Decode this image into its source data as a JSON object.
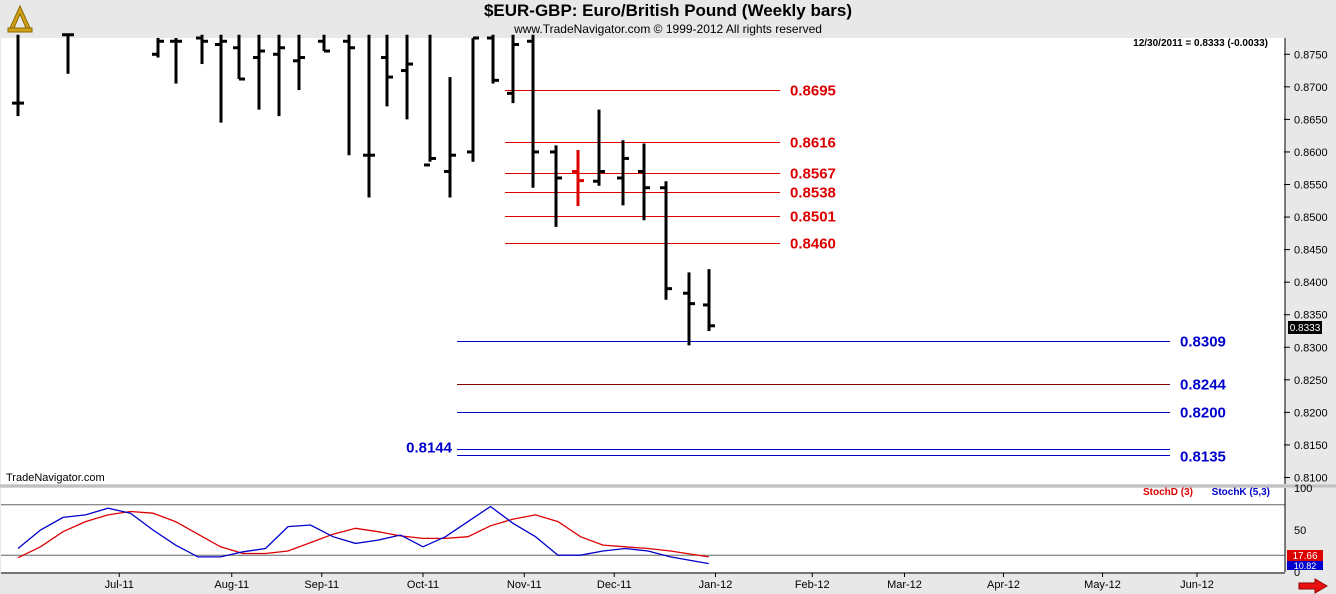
{
  "header": {
    "title": "$EUR-GBP:  Euro/British Pound  (Weekly bars)",
    "copyright": "www.TradeNavigator.com © 1999-2012 All rights reserved",
    "watermark": "TradeNavigator.com",
    "last_quote": "12/30/2011 = 0.8333 (-0.0033)",
    "price_tag": "0.8333",
    "stoch_tag": "17.66",
    "stoch_tag2": "10.82"
  },
  "colors": {
    "price_bar": "#000000",
    "highlight_bar": "#dd0000",
    "resistance": "#dd0000",
    "support": "#0000cc",
    "stoch_d": "#dd0000",
    "stoch_k": "#0000cc",
    "background": "#ffffff",
    "gutter": "#e8e8e8"
  },
  "icons": {
    "logo": "golden-tripod-logo-icon",
    "scroll": "red-right-arrow-icon"
  },
  "chart_data": [
    {
      "type": "ohlc",
      "title": "$EUR-GBP:  Euro/British Pound  (Weekly bars)",
      "yaxis": {
        "position": "right",
        "ylim": [
          0.809,
          0.8775
        ],
        "ticks": [
          "0.8750",
          "0.8700",
          "0.8650",
          "0.8600",
          "0.8550",
          "0.8500",
          "0.8450",
          "0.8400",
          "0.8350",
          "0.8300",
          "0.8250",
          "0.8200",
          "0.8150",
          "0.8100"
        ]
      },
      "xaxis": {
        "ticks": [
          "Jul-11",
          "Aug-11",
          "Sep-11",
          "Oct-11",
          "Nov-11",
          "Dec-11",
          "Jan-12",
          "Feb-12",
          "Mar-12",
          "Apr-12",
          "May-12",
          "Jun-12"
        ],
        "tick_weeks": [
          4.5,
          9.5,
          13.5,
          18,
          22.5,
          26.5,
          31,
          35.3,
          39.4,
          43.8,
          48.2,
          52.4
        ]
      },
      "grid": false,
      "bars": [
        {
          "week": 0,
          "o": 0.8675,
          "h": 0.878,
          "l": 0.8655,
          "c": 0.8675
        },
        {
          "week": 2.2,
          "o": 0.878,
          "h": 0.878,
          "l": 0.872,
          "c": 0.878
        },
        {
          "week": 6.2,
          "o": 0.875,
          "h": 0.8775,
          "l": 0.8745,
          "c": 0.877
        },
        {
          "week": 7,
          "o": 0.877,
          "h": 0.8775,
          "l": 0.8705,
          "c": 0.877
        },
        {
          "week": 8.2,
          "o": 0.8775,
          "h": 0.878,
          "l": 0.8735,
          "c": 0.877
        },
        {
          "week": 9,
          "o": 0.8765,
          "h": 0.878,
          "l": 0.8645,
          "c": 0.877
        },
        {
          "week": 9.8,
          "o": 0.876,
          "h": 0.878,
          "l": 0.8712,
          "c": 0.8712
        },
        {
          "week": 10.7,
          "o": 0.8745,
          "h": 0.878,
          "l": 0.8665,
          "c": 0.8755
        },
        {
          "week": 11.6,
          "o": 0.875,
          "h": 0.878,
          "l": 0.8655,
          "c": 0.876
        },
        {
          "week": 12.5,
          "o": 0.874,
          "h": 0.878,
          "l": 0.8695,
          "c": 0.8745
        },
        {
          "week": 13.6,
          "o": 0.877,
          "h": 0.878,
          "l": 0.8755,
          "c": 0.8755
        },
        {
          "week": 14.7,
          "o": 0.877,
          "h": 0.878,
          "l": 0.8595,
          "c": 0.876
        },
        {
          "week": 15.6,
          "o": 0.8595,
          "h": 0.878,
          "l": 0.853,
          "c": 0.8595
        },
        {
          "week": 16.4,
          "o": 0.8745,
          "h": 0.878,
          "l": 0.867,
          "c": 0.8715
        },
        {
          "week": 17.3,
          "o": 0.8725,
          "h": 0.878,
          "l": 0.865,
          "c": 0.8735
        },
        {
          "week": 18.3,
          "o": 0.858,
          "h": 0.878,
          "l": 0.8585,
          "c": 0.859
        },
        {
          "week": 19.2,
          "o": 0.857,
          "h": 0.8715,
          "l": 0.853,
          "c": 0.8595
        },
        {
          "week": 20.2,
          "o": 0.86,
          "h": 0.8775,
          "l": 0.8585,
          "c": 0.8775
        },
        {
          "week": 21.1,
          "o": 0.8775,
          "h": 0.878,
          "l": 0.8705,
          "c": 0.871
        },
        {
          "week": 22.0,
          "o": 0.869,
          "h": 0.878,
          "l": 0.8675,
          "c": 0.8765
        },
        {
          "week": 22.9,
          "o": 0.877,
          "h": 0.878,
          "l": 0.8545,
          "c": 0.86
        },
        {
          "week": 23.9,
          "o": 0.86,
          "h": 0.861,
          "l": 0.8485,
          "c": 0.856
        },
        {
          "week": 24.9,
          "o": 0.857,
          "h": 0.8603,
          "l": 0.8517,
          "c": 0.8556,
          "highlight": true
        },
        {
          "week": 25.8,
          "o": 0.8555,
          "h": 0.8665,
          "l": 0.8548,
          "c": 0.857
        },
        {
          "week": 26.9,
          "o": 0.856,
          "h": 0.8618,
          "l": 0.8518,
          "c": 0.859
        },
        {
          "week": 27.8,
          "o": 0.857,
          "h": 0.8613,
          "l": 0.8495,
          "c": 0.8545
        },
        {
          "week": 28.8,
          "o": 0.8545,
          "h": 0.8555,
          "l": 0.8373,
          "c": 0.839
        },
        {
          "week": 29.8,
          "o": 0.8383,
          "h": 0.8415,
          "l": 0.8303,
          "c": 0.8367
        },
        {
          "week": 30.7,
          "o": 0.8365,
          "h": 0.842,
          "l": 0.8325,
          "c": 0.8333
        }
      ],
      "levels": [
        {
          "label": "0.8695",
          "value": 0.8695,
          "kind": "resistance"
        },
        {
          "label": "0.8616",
          "value": 0.8616,
          "kind": "resistance"
        },
        {
          "label": "0.8567",
          "value": 0.8567,
          "kind": "resistance"
        },
        {
          "label": "0.8538",
          "value": 0.8538,
          "kind": "resistance"
        },
        {
          "label": "0.8501",
          "value": 0.8501,
          "kind": "resistance"
        },
        {
          "label": "0.8460",
          "value": 0.846,
          "kind": "resistance"
        },
        {
          "label": "0.8309",
          "value": 0.8309,
          "kind": "support"
        },
        {
          "label": "0.8244",
          "value": 0.8244,
          "kind": "support"
        },
        {
          "label": "0.8200",
          "value": 0.82,
          "kind": "support"
        },
        {
          "label": "0.8144",
          "value": 0.8144,
          "kind": "support",
          "label_side": "left"
        },
        {
          "label": "0.8135",
          "value": 0.8135,
          "kind": "support"
        }
      ]
    },
    {
      "type": "line",
      "yaxis": {
        "ylim": [
          0,
          100
        ],
        "ticks": [
          "100",
          "50",
          "0"
        ],
        "reference_lines": [
          80,
          20
        ]
      },
      "legend": [
        "StochD (3)",
        "StochK (5,3)"
      ],
      "series": [
        {
          "name": "StochD (3)",
          "x": [
            0,
            1,
            2,
            3,
            4,
            5,
            6,
            7,
            8,
            9,
            10,
            11,
            12,
            13,
            14,
            15,
            16,
            17,
            18,
            19,
            20,
            21,
            22,
            23,
            24,
            25,
            26,
            27,
            28,
            29,
            30.7
          ],
          "values": [
            17,
            30,
            48,
            60,
            68,
            72,
            70,
            60,
            45,
            30,
            22,
            22,
            25,
            35,
            45,
            52,
            48,
            43,
            40,
            40,
            42,
            55,
            63,
            68,
            60,
            42,
            32,
            30,
            28,
            25,
            18
          ]
        },
        {
          "name": "StochK (5,3)",
          "x": [
            0,
            1,
            2,
            3,
            4,
            5,
            6,
            7,
            8,
            9,
            10,
            11,
            12,
            13,
            14,
            15,
            16,
            17,
            18,
            19,
            20,
            21,
            22,
            23,
            24,
            25,
            26,
            27,
            28,
            29,
            30.7
          ],
          "values": [
            28,
            50,
            65,
            68,
            76,
            70,
            50,
            32,
            18,
            18,
            24,
            28,
            54,
            56,
            42,
            34,
            38,
            44,
            30,
            42,
            60,
            78,
            58,
            42,
            20,
            20,
            25,
            28,
            25,
            18,
            10
          ]
        }
      ]
    }
  ]
}
